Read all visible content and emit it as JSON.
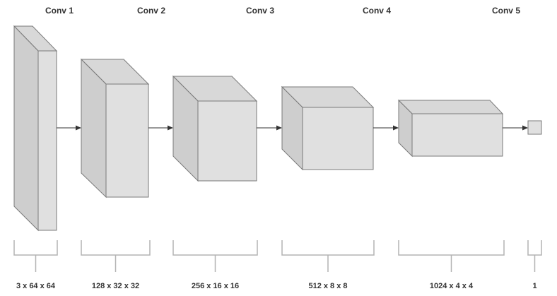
{
  "layers": [
    {
      "id": "conv1",
      "title": "Conv 1",
      "dims": "3 x 64 x 64"
    },
    {
      "id": "conv2",
      "title": "Conv 2",
      "dims": "128 x 32 x 32"
    },
    {
      "id": "conv3",
      "title": "Conv 3",
      "dims": "256 x 16 x 16"
    },
    {
      "id": "conv4",
      "title": "Conv 4",
      "dims": "512 x 8 x 8"
    },
    {
      "id": "conv5",
      "title": "Conv 5",
      "dims": "1024 x 4 x 4"
    },
    {
      "id": "output",
      "title": "",
      "dims": "1"
    }
  ],
  "colors": {
    "box_front": "#e0e0e0",
    "box_side": "#cecece",
    "box_stroke": "#7a7a7a",
    "arrow": "#333333",
    "bracket": "#b3b3b3",
    "text": "#333333"
  }
}
